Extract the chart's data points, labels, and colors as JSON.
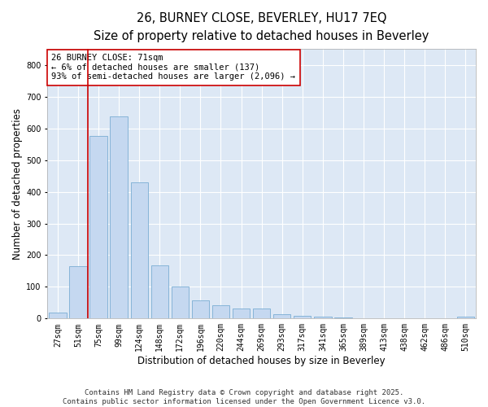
{
  "title1": "26, BURNEY CLOSE, BEVERLEY, HU17 7EQ",
  "title2": "Size of property relative to detached houses in Beverley",
  "xlabel": "Distribution of detached houses by size in Beverley",
  "ylabel": "Number of detached properties",
  "categories": [
    "27sqm",
    "51sqm",
    "75sqm",
    "99sqm",
    "124sqm",
    "148sqm",
    "172sqm",
    "196sqm",
    "220sqm",
    "244sqm",
    "269sqm",
    "293sqm",
    "317sqm",
    "341sqm",
    "365sqm",
    "389sqm",
    "413sqm",
    "438sqm",
    "462sqm",
    "486sqm",
    "510sqm"
  ],
  "values": [
    18,
    165,
    575,
    638,
    430,
    168,
    102,
    57,
    43,
    32,
    32,
    13,
    8,
    5,
    4,
    0,
    0,
    0,
    0,
    0,
    6
  ],
  "bar_color": "#c5d8f0",
  "bar_edge_color": "#7aadd4",
  "vline_color": "#cc0000",
  "annotation_text": "26 BURNEY CLOSE: 71sqm\n← 6% of detached houses are smaller (137)\n93% of semi-detached houses are larger (2,096) →",
  "annotation_box_color": "#ffffff",
  "annotation_box_edge": "#cc0000",
  "figure_bg_color": "#ffffff",
  "plot_bg_color": "#dde8f5",
  "grid_color": "#ffffff",
  "footer": "Contains HM Land Registry data © Crown copyright and database right 2025.\nContains public sector information licensed under the Open Government Licence v3.0.",
  "ylim": [
    0,
    850
  ],
  "yticks": [
    0,
    100,
    200,
    300,
    400,
    500,
    600,
    700,
    800
  ],
  "title_fontsize": 10.5,
  "subtitle_fontsize": 9.5,
  "axis_label_fontsize": 8.5,
  "tick_fontsize": 7,
  "footer_fontsize": 6.5,
  "annotation_fontsize": 7.5
}
